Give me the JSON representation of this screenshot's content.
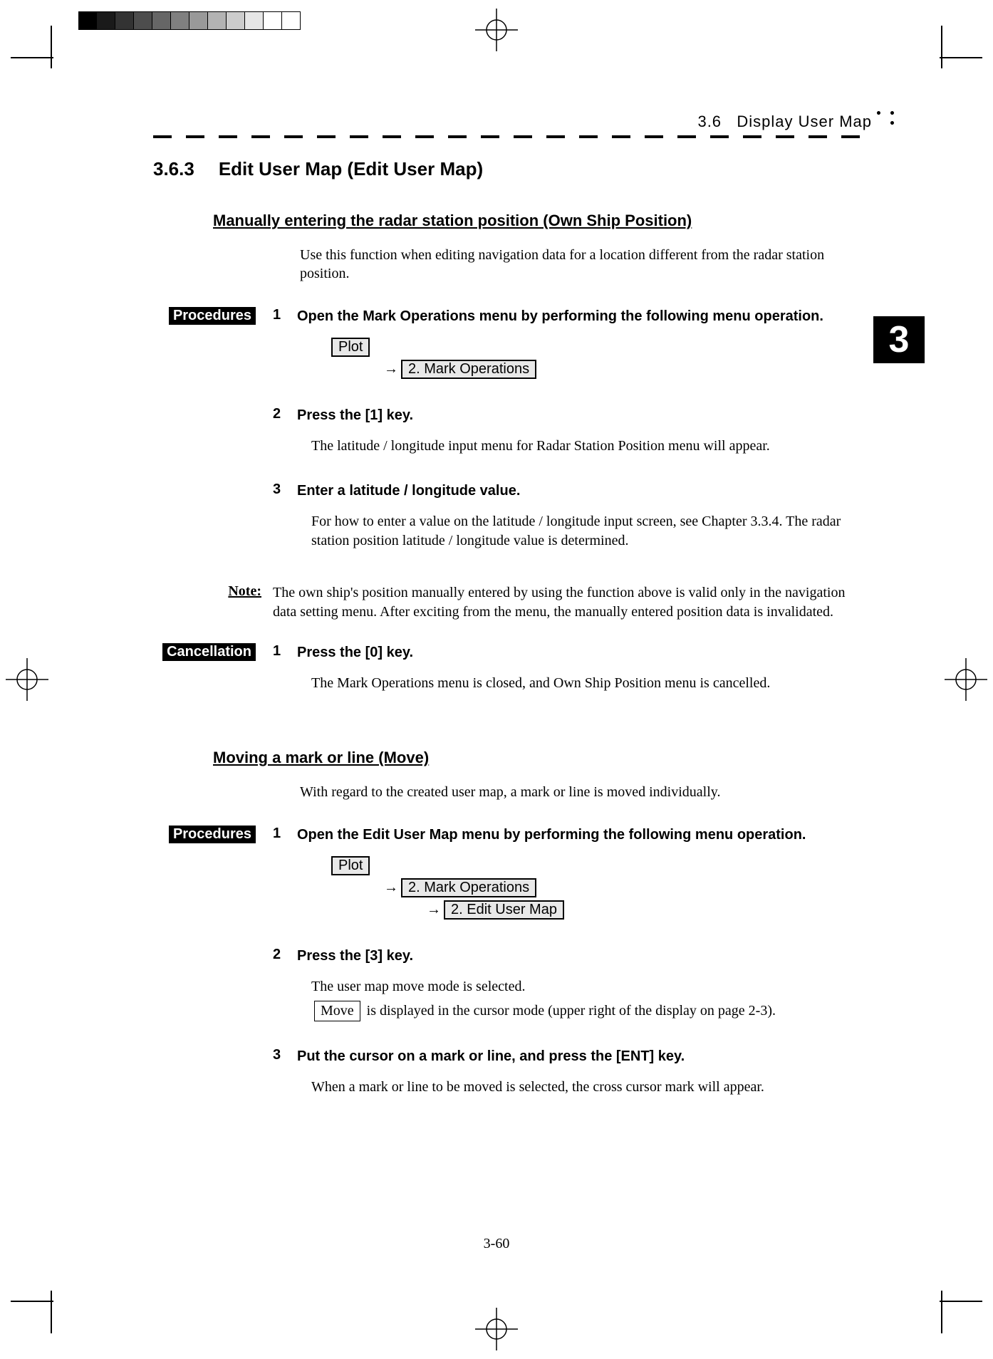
{
  "gradient_strip": {
    "colors": [
      "#000000",
      "#1a1a1a",
      "#333333",
      "#4d4d4d",
      "#666666",
      "#808080",
      "#999999",
      "#b3b3b3",
      "#cccccc",
      "#e6e6e6",
      "#ffffff",
      "#ffffff"
    ]
  },
  "running_header": {
    "section_ref": "3.6",
    "title": "Display User Map"
  },
  "chapter_tab": "3",
  "section": {
    "number": "3.6.3",
    "title": "Edit User Map (Edit User Map)"
  },
  "sub1": {
    "heading": "Manually entering the radar station position (Own Ship Position)",
    "intro": "Use this function when editing navigation data for a location different from the radar station position.",
    "procedures_label": "Procedures",
    "cancellation_label": "Cancellation",
    "steps": {
      "s1": {
        "num": "1",
        "title": "Open the Mark Operations menu by performing the following menu operation.",
        "menu": {
          "plot": "Plot",
          "m2": "2. Mark Operations"
        }
      },
      "s2": {
        "num": "2",
        "title": "Press the [1] key.",
        "text": "The latitude / longitude input menu for Radar Station Position menu will appear."
      },
      "s3": {
        "num": "3",
        "title": "Enter a latitude / longitude value.",
        "text": "For how to enter a value on the latitude / longitude input screen, see Chapter 3.3.4. The radar station position latitude / longitude value is determined."
      }
    },
    "note": {
      "label": "Note:",
      "text": "The own ship's position manually entered by using the function above is valid only in the navigation data setting menu.    After exciting from the menu, the manually entered position data is invalidated."
    },
    "cancel": {
      "num": "1",
      "title": "Press the [0] key.",
      "text": "The Mark Operations menu is closed, and Own Ship Position menu is cancelled."
    }
  },
  "sub2": {
    "heading": "Moving a mark or line (Move)",
    "intro": "With regard to the created user map, a mark or line is moved individually.",
    "procedures_label": "Procedures",
    "steps": {
      "s1": {
        "num": "1",
        "title": "Open the Edit User Map menu by performing the following menu operation.",
        "menu": {
          "plot": "Plot",
          "m2": "2. Mark Operations",
          "m3": "2. Edit User Map"
        }
      },
      "s2": {
        "num": "2",
        "title": "Press the [3] key.",
        "text1": "The user map move mode is selected.",
        "move_box": "Move",
        "text2": " is displayed in the cursor mode (upper right of the display on page 2-3)."
      },
      "s3": {
        "num": "3",
        "title": "Put the cursor on a mark or line, and press the [ENT] key.",
        "text": "When a mark or line to be moved is selected, the cross cursor mark will appear."
      }
    }
  },
  "page_number": "3-60"
}
